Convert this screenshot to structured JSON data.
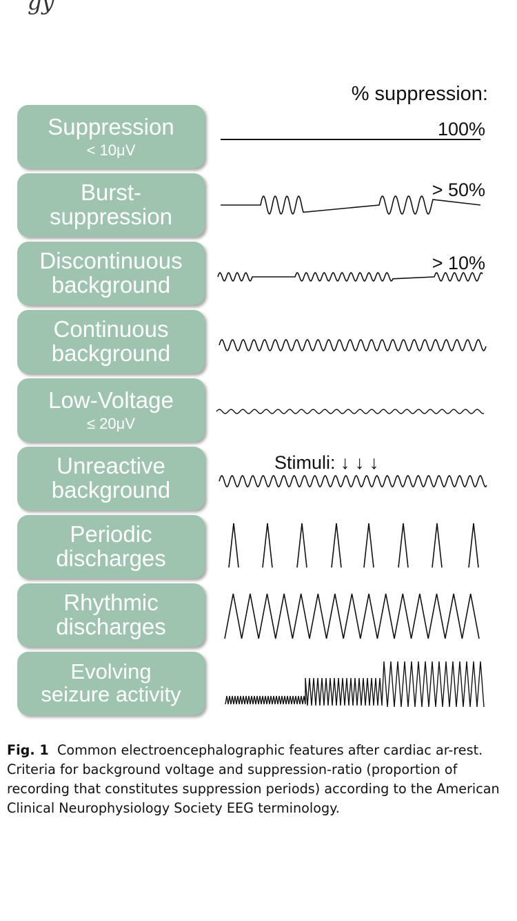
{
  "top_cut_text": "gy",
  "header": "% suppression:",
  "rows": [
    {
      "title": "Suppression",
      "sub": "< 10μV",
      "label": "100%"
    },
    {
      "title": "Burst-\nsuppression",
      "label": "> 50%"
    },
    {
      "title": "Discontinuous\nbackground",
      "label": "> 10%"
    },
    {
      "title": "Continuous\nbackground"
    },
    {
      "title": "Low-Voltage",
      "sub": "≤ 20μV"
    },
    {
      "title": "Unreactive\nbackground",
      "label": "Stimuli: ↓    ↓    ↓"
    },
    {
      "title": "Periodic\ndischarges"
    },
    {
      "title": "Rhythmic\ndischarges"
    },
    {
      "title": "Evolving\nseizure activity"
    }
  ],
  "caption": {
    "fig_label": "Fig. 1",
    "text": "Common electroencephalographic features after cardiac ar-rest. Criteria for background voltage and suppression-ratio (proportion of recording that constitutes suppression periods) according to the American Clinical Neurophysiology Society EEG terminology."
  },
  "colors": {
    "box_fill": "#9ec4af",
    "box_text": "#ffffff",
    "trace": "#111111"
  }
}
